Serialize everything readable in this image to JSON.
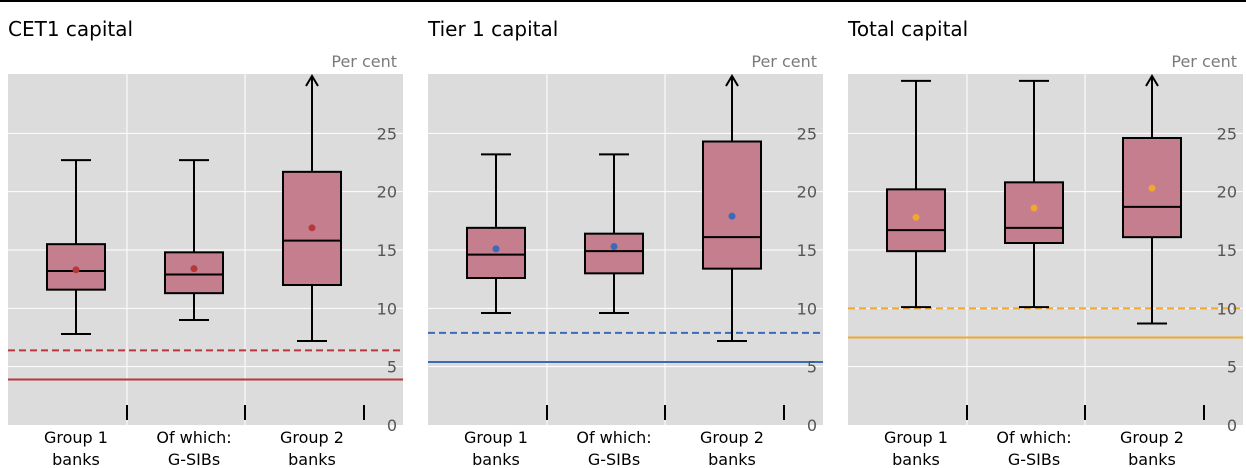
{
  "chart_data": [
    {
      "type": "box",
      "title": "CET1 capital",
      "unit": "Per cent",
      "ylim": [
        0,
        30
      ],
      "yticks": [
        0,
        5,
        10,
        15,
        20,
        25
      ],
      "categories": [
        "Group 1 banks",
        "Of which: G-SIBs",
        "Group 2 banks"
      ],
      "category_lines": [
        [
          "Group 1",
          "banks"
        ],
        [
          "Of which:",
          "G-SIBs"
        ],
        [
          "Group 2",
          "banks"
        ]
      ],
      "boxes": [
        {
          "min": 7.8,
          "q1": 11.6,
          "median": 13.2,
          "q3": 15.5,
          "max": 22.7,
          "mean": 13.3,
          "max_off_scale": false
        },
        {
          "min": 9.0,
          "q1": 11.3,
          "median": 12.9,
          "q3": 14.8,
          "max": 22.7,
          "mean": 13.4,
          "max_off_scale": false
        },
        {
          "min": 7.2,
          "q1": 12.0,
          "median": 15.8,
          "q3": 21.7,
          "max": 30,
          "mean": 16.9,
          "max_off_scale": true
        }
      ],
      "reference_lines": [
        {
          "value": 6.4,
          "style": "dashed",
          "color": "#b8373b"
        },
        {
          "value": 3.9,
          "style": "solid",
          "color": "#b8373b"
        }
      ],
      "mean_color": "#b8373b"
    },
    {
      "type": "box",
      "title": "Tier 1 capital",
      "unit": "Per cent",
      "ylim": [
        0,
        30
      ],
      "yticks": [
        0,
        5,
        10,
        15,
        20,
        25
      ],
      "categories": [
        "Group 1 banks",
        "Of which: G-SIBs",
        "Group 2 banks"
      ],
      "category_lines": [
        [
          "Group 1",
          "banks"
        ],
        [
          "Of which:",
          "G-SIBs"
        ],
        [
          "Group 2",
          "banks"
        ]
      ],
      "boxes": [
        {
          "min": 9.6,
          "q1": 12.6,
          "median": 14.6,
          "q3": 16.9,
          "max": 23.2,
          "mean": 15.1,
          "max_off_scale": false
        },
        {
          "min": 9.6,
          "q1": 13.0,
          "median": 14.9,
          "q3": 16.4,
          "max": 23.2,
          "mean": 15.3,
          "max_off_scale": false
        },
        {
          "min": 7.2,
          "q1": 13.4,
          "median": 16.1,
          "q3": 24.3,
          "max": 30,
          "mean": 17.9,
          "max_off_scale": true
        }
      ],
      "reference_lines": [
        {
          "value": 7.9,
          "style": "dashed",
          "color": "#3b6bb8"
        },
        {
          "value": 5.4,
          "style": "solid",
          "color": "#3b6bb8"
        }
      ],
      "mean_color": "#3b6bb8"
    },
    {
      "type": "box",
      "title": "Total capital",
      "unit": "Per cent",
      "ylim": [
        0,
        30
      ],
      "yticks": [
        0,
        5,
        10,
        15,
        20,
        25
      ],
      "categories": [
        "Group 1 banks",
        "Of which: G-SIBs",
        "Group 2 banks"
      ],
      "category_lines": [
        [
          "Group 1",
          "banks"
        ],
        [
          "Of which:",
          "G-SIBs"
        ],
        [
          "Group 2",
          "banks"
        ]
      ],
      "boxes": [
        {
          "min": 10.1,
          "q1": 14.9,
          "median": 16.7,
          "q3": 20.2,
          "max": 29.5,
          "mean": 17.8,
          "max_off_scale": false
        },
        {
          "min": 10.1,
          "q1": 15.6,
          "median": 16.9,
          "q3": 20.8,
          "max": 29.5,
          "mean": 18.6,
          "max_off_scale": false
        },
        {
          "min": 8.7,
          "q1": 16.1,
          "median": 18.7,
          "q3": 24.6,
          "max": 30,
          "mean": 20.3,
          "max_off_scale": true
        }
      ],
      "reference_lines": [
        {
          "value": 10.0,
          "style": "dashed",
          "color": "#f0a830"
        },
        {
          "value": 7.5,
          "style": "solid",
          "color": "#f0a830"
        }
      ],
      "mean_color": "#f0a830"
    }
  ],
  "style": {
    "box_fill": "#c47e8d",
    "plot_background": "#dcdcdc",
    "gridline": "#ffffff",
    "whisker": "#000000"
  }
}
